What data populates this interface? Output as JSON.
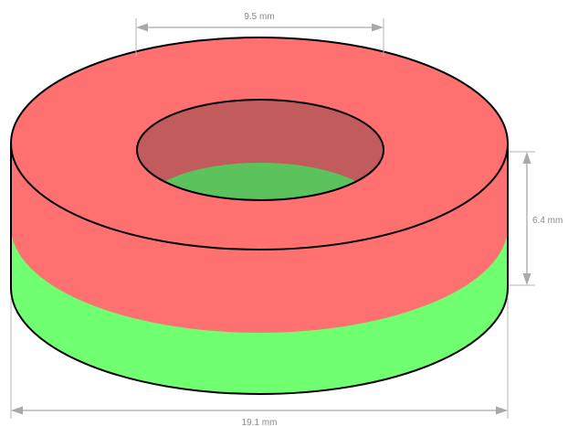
{
  "dimensions": {
    "inner_diameter": "9.5 mm",
    "height": "6.4 mm",
    "outer_diameter": "19.1 mm"
  },
  "colors": {
    "north_pole": "#ff7070",
    "south_pole": "#70ff70",
    "bore_wall": "#c25c5c",
    "bore_floor": "#5cc25c",
    "dimension_lines": "#a9a9a9"
  }
}
